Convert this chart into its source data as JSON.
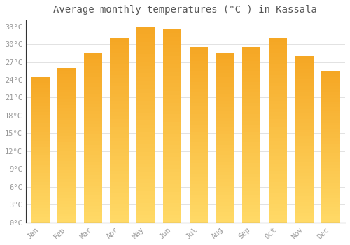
{
  "title": "Average monthly temperatures (°C ) in Kassala",
  "months": [
    "Jan",
    "Feb",
    "Mar",
    "Apr",
    "May",
    "Jun",
    "Jul",
    "Aug",
    "Sep",
    "Oct",
    "Nov",
    "Dec"
  ],
  "values": [
    24.5,
    26.0,
    28.5,
    31.0,
    33.0,
    32.5,
    29.5,
    28.5,
    29.5,
    31.0,
    28.0,
    25.5
  ],
  "bar_color_bottom": "#FFD966",
  "bar_color_top": "#F5A623",
  "background_color": "#FFFFFF",
  "grid_color": "#DDDDDD",
  "ylim": [
    0,
    34
  ],
  "ytick_step": 3,
  "title_fontsize": 10,
  "tick_fontsize": 7.5,
  "tick_color": "#999999",
  "title_color": "#555555",
  "axis_line_color": "#333333"
}
